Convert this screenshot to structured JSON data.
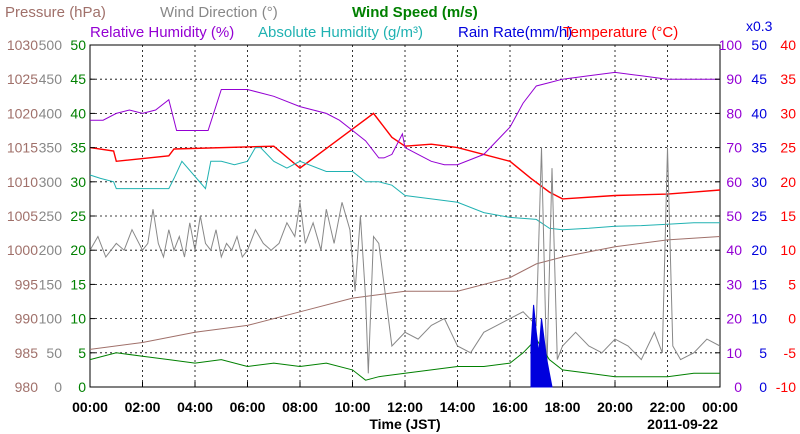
{
  "colors": {
    "pressure": "#a0706a",
    "wind_dir": "#888888",
    "wind_speed": "#008000",
    "humidity": "#9400d3",
    "abs_humidity": "#20b2b2",
    "rain": "#0000dd",
    "temperature": "#ff0000",
    "grid": "#000000"
  },
  "chart_data": {
    "type": "line",
    "title": "",
    "legend_row1": [
      "Pressure (hPa)",
      "Wind Direction (°)",
      "Wind Speed (m/s)"
    ],
    "legend_row2": [
      "Relative Humidity (%)",
      "Absolute Humidity (g/m³)",
      "Rain Rate(mm/h)",
      "Temperature (°C)"
    ],
    "rain_scale_note": "x0.3",
    "xlabel": "Time (JST)",
    "date_label": "2011-09-22",
    "x_ticks": [
      "00:00",
      "02:00",
      "04:00",
      "06:00",
      "08:00",
      "10:00",
      "12:00",
      "14:00",
      "16:00",
      "18:00",
      "20:00",
      "22:00",
      "00:00"
    ],
    "axes": {
      "pressure": {
        "ylim": [
          980,
          1030
        ],
        "ticks": [
          "980",
          "985",
          "990",
          "995",
          "1000",
          "1005",
          "1010",
          "1015",
          "1020",
          "1025",
          "1030"
        ]
      },
      "wind_dir": {
        "ylim": [
          0,
          500
        ],
        "ticks": [
          "0",
          "50",
          "100",
          "150",
          "200",
          "250",
          "300",
          "350",
          "400",
          "450",
          "500"
        ]
      },
      "wind_speed": {
        "ylim": [
          0,
          50
        ],
        "ticks": [
          "0",
          "5",
          "10",
          "15",
          "20",
          "25",
          "30",
          "35",
          "40",
          "45",
          "50"
        ]
      },
      "humidity": {
        "ylim": [
          0,
          100
        ],
        "ticks": [
          "0",
          "10",
          "20",
          "30",
          "40",
          "50",
          "60",
          "70",
          "80",
          "90",
          "100"
        ]
      },
      "rain": {
        "ylim": [
          0,
          50
        ],
        "ticks": [
          "0",
          "5",
          "10",
          "15",
          "20",
          "25",
          "30",
          "35",
          "40",
          "45",
          "50"
        ]
      },
      "temperature": {
        "ylim": [
          -10,
          40
        ],
        "ticks": [
          "-10",
          "-5",
          "0",
          "5",
          "10",
          "15",
          "20",
          "25",
          "30",
          "35",
          "40"
        ]
      }
    },
    "x_unit": "hours",
    "series": [
      {
        "name": "Temperature (°C)",
        "axis": "temperature",
        "color_key": "temperature",
        "x": [
          0,
          0.9,
          1,
          3,
          3.2,
          7,
          8,
          10.8,
          11.5,
          12,
          13,
          14,
          16,
          16.8,
          17.5,
          18,
          20,
          22,
          23,
          24
        ],
        "y": [
          25,
          24.5,
          23,
          23.8,
          24.8,
          25.2,
          22,
          30,
          26.5,
          25.2,
          25.5,
          25,
          23,
          20.5,
          18.5,
          17.5,
          18,
          18.2,
          18.5,
          18.8
        ]
      },
      {
        "name": "Relative Humidity (%)",
        "axis": "humidity",
        "color_key": "humidity",
        "x": [
          0,
          0.5,
          1,
          1.5,
          2,
          2.5,
          3,
          3.3,
          4.5,
          5,
          6,
          6.5,
          7,
          8,
          9,
          9.5,
          10,
          10.5,
          11,
          11.2,
          11.5,
          11.9,
          12,
          12.5,
          13,
          13.5,
          14,
          15,
          16,
          16.5,
          17,
          17.5,
          18,
          19,
          20,
          21,
          22,
          24
        ],
        "y": [
          78,
          78,
          80,
          81,
          80,
          81,
          84,
          75,
          75,
          87,
          87,
          86,
          85,
          82,
          80,
          78,
          75,
          72,
          67,
          67,
          68,
          74,
          70,
          68,
          66,
          65,
          65,
          68,
          76,
          83,
          88,
          89,
          90,
          91,
          92,
          91,
          90,
          90
        ]
      },
      {
        "name": "Absolute Humidity (g/m³)",
        "axis": "wind_speed",
        "color_key": "abs_humidity",
        "x": [
          0,
          0.4,
          0.9,
          1,
          3,
          3.2,
          3.5,
          4.4,
          4.6,
          5,
          5.5,
          6,
          6.3,
          6.5,
          7,
          7.5,
          8,
          9,
          10,
          10.5,
          11,
          11.5,
          12,
          13,
          14,
          15,
          16,
          17,
          17.5,
          18,
          19,
          20,
          21,
          22,
          23,
          24
        ],
        "y": [
          31,
          30.5,
          30,
          29,
          29,
          30.5,
          33,
          29,
          33,
          33,
          32.5,
          33,
          35,
          35,
          33,
          32,
          33,
          31.5,
          31.5,
          30,
          30,
          29.5,
          28,
          27.5,
          27,
          25.5,
          24.8,
          24.5,
          23.2,
          23,
          23.2,
          23.5,
          23.6,
          23.8,
          24,
          24
        ]
      },
      {
        "name": "Pressure (hPa)",
        "axis": "pressure",
        "color_key": "pressure",
        "x": [
          0,
          2,
          4,
          6,
          8,
          10,
          12,
          14,
          16,
          17,
          18,
          20,
          22,
          24
        ],
        "y": [
          985.5,
          986.5,
          988,
          989,
          991,
          993,
          994,
          994,
          996,
          998,
          999,
          1000.5,
          1001.5,
          1002
        ]
      },
      {
        "name": "Wind Direction (°)",
        "axis": "wind_dir",
        "color_key": "wind_dir",
        "x": [
          0,
          0.3,
          0.6,
          1,
          1.3,
          1.6,
          2,
          2.2,
          2.4,
          2.6,
          2.8,
          3,
          3.2,
          3.4,
          3.6,
          3.8,
          4,
          4.2,
          4.4,
          4.6,
          4.8,
          5,
          5.2,
          5.4,
          5.6,
          5.8,
          6,
          6.3,
          6.6,
          6.9,
          7.2,
          7.5,
          7.8,
          8,
          8.2,
          8.5,
          8.8,
          9,
          9.3,
          9.6,
          9.9,
          10.1,
          10.3,
          10.5,
          10.6,
          10.8,
          11,
          11.5,
          12,
          12.5,
          13,
          13.5,
          14,
          14.5,
          15,
          15.5,
          16,
          16.5,
          17,
          17.2,
          17.4,
          17.6,
          17.8,
          18,
          18.5,
          19,
          19.5,
          20,
          20.5,
          21,
          21.5,
          21.8,
          22,
          22.2,
          22.5,
          23,
          23.5,
          24
        ],
        "y": [
          200,
          220,
          190,
          210,
          200,
          230,
          200,
          210,
          260,
          210,
          190,
          230,
          200,
          220,
          190,
          240,
          200,
          250,
          210,
          200,
          230,
          190,
          210,
          200,
          220,
          190,
          200,
          230,
          210,
          200,
          210,
          240,
          220,
          270,
          210,
          240,
          200,
          260,
          210,
          270,
          230,
          140,
          250,
          130,
          20,
          220,
          210,
          60,
          80,
          70,
          90,
          100,
          60,
          50,
          80,
          90,
          100,
          110,
          90,
          350,
          20,
          320,
          40,
          60,
          80,
          60,
          50,
          70,
          60,
          40,
          80,
          50,
          350,
          60,
          40,
          50,
          70,
          60
        ]
      },
      {
        "name": "Wind Speed (m/s)",
        "axis": "wind_speed",
        "color_key": "wind_speed",
        "x": [
          0,
          1,
          2,
          3,
          4,
          5,
          6,
          7,
          8,
          9,
          10,
          10.5,
          11,
          12,
          13,
          14,
          15,
          16,
          16.5,
          17,
          17.5,
          18,
          19,
          20,
          21,
          22,
          23,
          24
        ],
        "y": [
          4,
          5,
          4.5,
          4,
          3.5,
          4,
          3,
          3.5,
          3,
          3.5,
          2.5,
          1,
          1.5,
          2,
          2.5,
          3,
          3,
          3.5,
          5,
          7,
          4,
          2.5,
          2,
          1.5,
          1.5,
          1.5,
          2,
          2
        ]
      },
      {
        "name": "Rain Rate(mm/h)",
        "axis": "rain",
        "color_key": "rain",
        "x": [
          16.8,
          16.9,
          17,
          17.1,
          17.2,
          17.3,
          17.4,
          17.5,
          17.6
        ],
        "y": [
          6,
          12,
          8,
          5,
          10,
          7,
          4,
          2,
          0
        ]
      }
    ]
  }
}
